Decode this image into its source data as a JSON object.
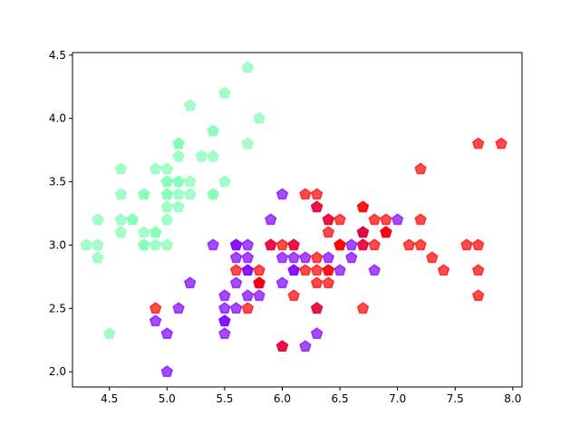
{
  "chart_data": {
    "type": "scatter",
    "title": "",
    "xlabel": "",
    "ylabel": "",
    "xlim": [
      4.18,
      8.08
    ],
    "ylim": [
      1.88,
      4.52
    ],
    "grid": false,
    "x_ticks": [
      "4.5",
      "5.0",
      "5.5",
      "6.0",
      "6.5",
      "7.0",
      "7.5",
      "8.0"
    ],
    "y_ticks": [
      "2.0",
      "2.5",
      "3.0",
      "3.5",
      "4.0",
      "4.5"
    ],
    "marker": "pentagon",
    "alpha": 0.7,
    "series": [
      {
        "color": "#80ffb4",
        "points": [
          [
            5.1,
            3.5
          ],
          [
            4.9,
            3.0
          ],
          [
            4.7,
            3.2
          ],
          [
            4.6,
            3.1
          ],
          [
            5.0,
            3.6
          ],
          [
            5.4,
            3.9
          ],
          [
            4.6,
            3.4
          ],
          [
            5.0,
            3.4
          ],
          [
            4.4,
            2.9
          ],
          [
            4.9,
            3.1
          ],
          [
            5.4,
            3.7
          ],
          [
            4.8,
            3.4
          ],
          [
            4.8,
            3.0
          ],
          [
            4.3,
            3.0
          ],
          [
            5.8,
            4.0
          ],
          [
            5.7,
            4.4
          ],
          [
            5.4,
            3.9
          ],
          [
            5.1,
            3.5
          ],
          [
            5.7,
            3.8
          ],
          [
            5.1,
            3.8
          ],
          [
            5.4,
            3.4
          ],
          [
            5.1,
            3.7
          ],
          [
            4.6,
            3.6
          ],
          [
            5.1,
            3.3
          ],
          [
            4.8,
            3.4
          ],
          [
            5.0,
            3.0
          ],
          [
            5.0,
            3.4
          ],
          [
            5.2,
            3.5
          ],
          [
            5.2,
            3.4
          ],
          [
            4.7,
            3.2
          ],
          [
            4.8,
            3.1
          ],
          [
            5.4,
            3.4
          ],
          [
            5.2,
            4.1
          ],
          [
            5.5,
            4.2
          ],
          [
            4.9,
            3.1
          ],
          [
            5.0,
            3.2
          ],
          [
            5.5,
            3.5
          ],
          [
            4.9,
            3.6
          ],
          [
            4.4,
            3.0
          ],
          [
            5.1,
            3.4
          ],
          [
            5.0,
            3.5
          ],
          [
            4.5,
            2.3
          ],
          [
            4.4,
            3.2
          ],
          [
            5.0,
            3.5
          ],
          [
            5.1,
            3.8
          ],
          [
            4.8,
            3.0
          ],
          [
            5.1,
            3.8
          ],
          [
            4.6,
            3.2
          ],
          [
            5.3,
            3.7
          ],
          [
            5.0,
            3.3
          ]
        ]
      },
      {
        "color": "#8000ff",
        "points": [
          [
            7.0,
            3.2
          ],
          [
            6.4,
            3.2
          ],
          [
            6.9,
            3.1
          ],
          [
            5.5,
            2.3
          ],
          [
            6.5,
            2.8
          ],
          [
            5.7,
            2.8
          ],
          [
            6.3,
            3.3
          ],
          [
            4.9,
            2.4
          ],
          [
            6.6,
            2.9
          ],
          [
            5.2,
            2.7
          ],
          [
            5.0,
            2.0
          ],
          [
            5.9,
            3.0
          ],
          [
            6.0,
            2.2
          ],
          [
            6.1,
            2.9
          ],
          [
            5.6,
            2.9
          ],
          [
            6.7,
            3.1
          ],
          [
            5.6,
            3.0
          ],
          [
            5.8,
            2.7
          ],
          [
            6.2,
            2.2
          ],
          [
            5.6,
            2.5
          ],
          [
            5.9,
            3.2
          ],
          [
            6.1,
            2.8
          ],
          [
            6.3,
            2.5
          ],
          [
            6.1,
            2.8
          ],
          [
            6.4,
            2.9
          ],
          [
            6.6,
            3.0
          ],
          [
            6.8,
            2.8
          ],
          [
            6.7,
            3.0
          ],
          [
            6.0,
            2.9
          ],
          [
            5.7,
            2.6
          ],
          [
            5.5,
            2.4
          ],
          [
            5.5,
            2.4
          ],
          [
            5.8,
            2.7
          ],
          [
            6.0,
            2.7
          ],
          [
            5.4,
            3.0
          ],
          [
            6.0,
            3.4
          ],
          [
            6.7,
            3.1
          ],
          [
            6.3,
            2.3
          ],
          [
            5.6,
            3.0
          ],
          [
            5.5,
            2.5
          ],
          [
            5.5,
            2.6
          ],
          [
            6.1,
            3.0
          ],
          [
            5.8,
            2.6
          ],
          [
            5.0,
            2.3
          ],
          [
            5.6,
            2.7
          ],
          [
            5.7,
            3.0
          ],
          [
            5.7,
            2.9
          ],
          [
            6.2,
            2.9
          ],
          [
            5.1,
            2.5
          ],
          [
            5.7,
            2.8
          ]
        ]
      },
      {
        "color": "#ff0000",
        "points": [
          [
            6.3,
            3.3
          ],
          [
            5.8,
            2.7
          ],
          [
            7.1,
            3.0
          ],
          [
            6.3,
            2.9
          ],
          [
            6.5,
            3.0
          ],
          [
            7.6,
            3.0
          ],
          [
            4.9,
            2.5
          ],
          [
            7.3,
            2.9
          ],
          [
            6.7,
            2.5
          ],
          [
            7.2,
            3.6
          ],
          [
            6.5,
            3.2
          ],
          [
            6.4,
            2.7
          ],
          [
            6.8,
            3.0
          ],
          [
            5.7,
            2.5
          ],
          [
            5.8,
            2.8
          ],
          [
            6.4,
            3.2
          ],
          [
            6.5,
            3.0
          ],
          [
            7.7,
            3.8
          ],
          [
            7.7,
            2.6
          ],
          [
            6.0,
            2.2
          ],
          [
            6.9,
            3.2
          ],
          [
            5.6,
            2.8
          ],
          [
            7.7,
            2.8
          ],
          [
            6.3,
            2.7
          ],
          [
            6.7,
            3.3
          ],
          [
            7.2,
            3.2
          ],
          [
            6.2,
            2.8
          ],
          [
            6.1,
            3.0
          ],
          [
            6.4,
            2.8
          ],
          [
            7.2,
            3.0
          ],
          [
            7.4,
            2.8
          ],
          [
            7.9,
            3.8
          ],
          [
            6.4,
            2.8
          ],
          [
            6.3,
            2.8
          ],
          [
            6.1,
            2.6
          ],
          [
            7.7,
            3.0
          ],
          [
            6.3,
            3.4
          ],
          [
            6.4,
            3.1
          ],
          [
            6.0,
            3.0
          ],
          [
            6.9,
            3.1
          ],
          [
            6.7,
            3.1
          ],
          [
            6.9,
            3.1
          ],
          [
            5.8,
            2.7
          ],
          [
            6.8,
            3.2
          ],
          [
            6.7,
            3.3
          ],
          [
            6.7,
            3.0
          ],
          [
            6.3,
            2.5
          ],
          [
            6.5,
            3.0
          ],
          [
            6.2,
            3.4
          ],
          [
            5.9,
            3.0
          ]
        ]
      }
    ]
  }
}
